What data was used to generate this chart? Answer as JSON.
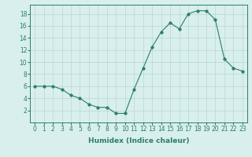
{
  "x": [
    0,
    1,
    2,
    3,
    4,
    5,
    6,
    7,
    8,
    9,
    10,
    11,
    12,
    13,
    14,
    15,
    16,
    17,
    18,
    19,
    20,
    21,
    22,
    23
  ],
  "y": [
    6,
    6,
    6,
    5.5,
    4.5,
    4,
    3,
    2.5,
    2.5,
    1.5,
    1.5,
    5.5,
    9,
    12.5,
    15,
    16.5,
    15.5,
    18,
    18.5,
    18.5,
    17,
    10.5,
    9,
    8.5
  ],
  "xlabel": "Humidex (Indice chaleur)",
  "ylim": [
    0,
    19.5
  ],
  "xlim": [
    -0.5,
    23.5
  ],
  "yticks": [
    2,
    4,
    6,
    8,
    10,
    12,
    14,
    16,
    18
  ],
  "xticks": [
    0,
    1,
    2,
    3,
    4,
    5,
    6,
    7,
    8,
    9,
    10,
    11,
    12,
    13,
    14,
    15,
    16,
    17,
    18,
    19,
    20,
    21,
    22,
    23
  ],
  "line_color": "#2d7d6b",
  "marker_size": 2.5,
  "bg_color": "#d8efed",
  "grid_color": "#b8d8d4",
  "label_fontsize": 6.5,
  "tick_fontsize": 5.5
}
